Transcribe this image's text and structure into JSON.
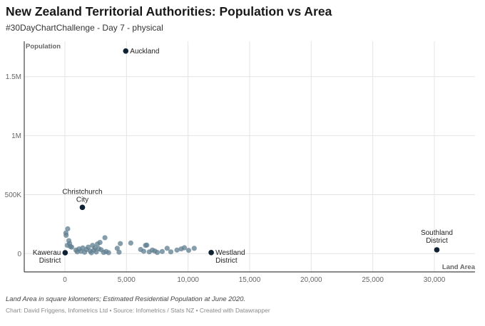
{
  "header": {
    "title": "New Zealand Territorial Authorities: Population vs Area",
    "subtitle": "#30DayChartChallenge - Day 7 - physical"
  },
  "footer": {
    "notes": "Land Area in square kilometers; Estimated Residential Population at June 2020.",
    "byline": "Chart: David Friggens, Infometrics Ltd • Source: Infometrics / Stats NZ • Created with Datawrapper"
  },
  "colors": {
    "point": "#5e7d8f",
    "highlight": "#0f2233",
    "grid": "#e4e4e4",
    "axis": "#444444"
  },
  "chart_data": {
    "type": "scatter",
    "xlabel": "Land Area",
    "ylabel": "Population",
    "xlim": [
      -3300,
      33300
    ],
    "ylim": [
      -155000,
      1800000
    ],
    "xticks": [
      {
        "value": 0,
        "label": "0"
      },
      {
        "value": 5000,
        "label": "5,000"
      },
      {
        "value": 10000,
        "label": "10,000"
      },
      {
        "value": 15000,
        "label": "15,000"
      },
      {
        "value": 20000,
        "label": "20,000"
      },
      {
        "value": 25000,
        "label": "25,000"
      },
      {
        "value": 30000,
        "label": "30,000"
      }
    ],
    "yticks": [
      {
        "value": 0,
        "label": "0"
      },
      {
        "value": 500000,
        "label": "500K"
      },
      {
        "value": 1000000,
        "label": "1M"
      },
      {
        "value": 1500000,
        "label": "1.5M"
      }
    ],
    "grid": true,
    "highlighted": [
      {
        "name": "Auckland",
        "x": 4940,
        "y": 1717500
      },
      {
        "name": "Christchurch City",
        "x": 1420,
        "y": 392100
      },
      {
        "name": "Kawerau District",
        "x": 22,
        "y": 7600
      },
      {
        "name": "Westland District",
        "x": 11880,
        "y": 8950
      },
      {
        "name": "Southland District",
        "x": 30200,
        "y": 32100
      }
    ],
    "points": [
      {
        "x": 80,
        "y": 175000
      },
      {
        "x": 100,
        "y": 155000
      },
      {
        "x": 230,
        "y": 210000
      },
      {
        "x": 320,
        "y": 110000
      },
      {
        "x": 380,
        "y": 85000
      },
      {
        "x": 200,
        "y": 70000
      },
      {
        "x": 450,
        "y": 60000
      },
      {
        "x": 550,
        "y": 55000
      },
      {
        "x": 900,
        "y": 30000
      },
      {
        "x": 1000,
        "y": 15000
      },
      {
        "x": 1150,
        "y": 40000
      },
      {
        "x": 1300,
        "y": 20000
      },
      {
        "x": 1450,
        "y": 48000
      },
      {
        "x": 1600,
        "y": 12000
      },
      {
        "x": 1750,
        "y": 35000
      },
      {
        "x": 1900,
        "y": 55000
      },
      {
        "x": 2050,
        "y": 22000
      },
      {
        "x": 2150,
        "y": 8000
      },
      {
        "x": 2250,
        "y": 70000
      },
      {
        "x": 2350,
        "y": 30000
      },
      {
        "x": 2450,
        "y": 50000
      },
      {
        "x": 2550,
        "y": 14000
      },
      {
        "x": 2650,
        "y": 82000
      },
      {
        "x": 2750,
        "y": 42000
      },
      {
        "x": 2850,
        "y": 95000
      },
      {
        "x": 2950,
        "y": 32000
      },
      {
        "x": 3150,
        "y": 10000
      },
      {
        "x": 3250,
        "y": 135000
      },
      {
        "x": 3350,
        "y": 18000
      },
      {
        "x": 3550,
        "y": 8000
      },
      {
        "x": 4250,
        "y": 45000
      },
      {
        "x": 4400,
        "y": 12000
      },
      {
        "x": 4500,
        "y": 85000
      },
      {
        "x": 5350,
        "y": 90000
      },
      {
        "x": 6150,
        "y": 35000
      },
      {
        "x": 6400,
        "y": 20000
      },
      {
        "x": 6550,
        "y": 70000
      },
      {
        "x": 6650,
        "y": 72000
      },
      {
        "x": 6850,
        "y": 15000
      },
      {
        "x": 7100,
        "y": 30000
      },
      {
        "x": 7300,
        "y": 22000
      },
      {
        "x": 7500,
        "y": 10000
      },
      {
        "x": 7900,
        "y": 18000
      },
      {
        "x": 8300,
        "y": 45000
      },
      {
        "x": 8600,
        "y": 15000
      },
      {
        "x": 9100,
        "y": 30000
      },
      {
        "x": 9450,
        "y": 40000
      },
      {
        "x": 9700,
        "y": 50000
      },
      {
        "x": 10050,
        "y": 28000
      },
      {
        "x": 10500,
        "y": 45000
      }
    ]
  }
}
